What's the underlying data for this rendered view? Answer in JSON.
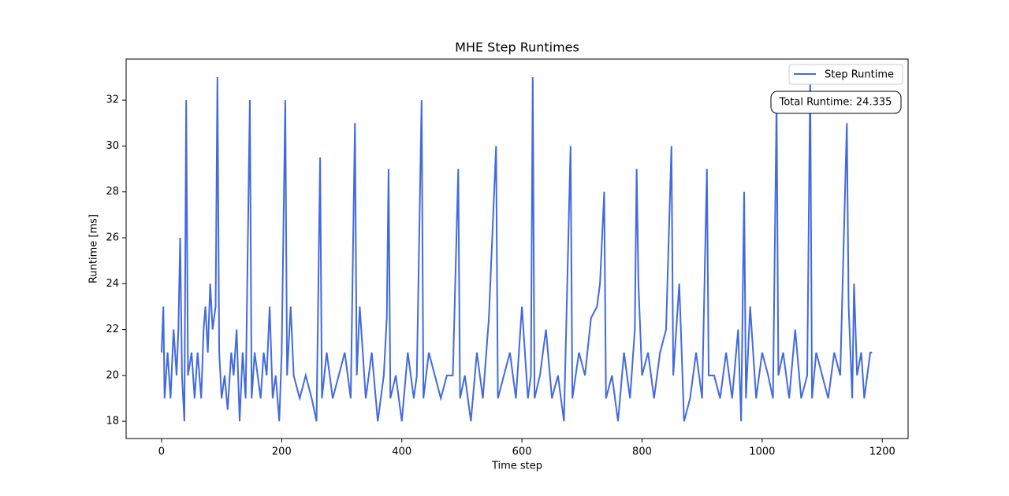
{
  "chart_data": {
    "type": "line",
    "title": "MHE Step Runtimes",
    "x_label": "Time step",
    "y_label": "Runtime [ms]",
    "annotation": "Total Runtime: 24.335",
    "legend": "upper right",
    "x": [
      0,
      3,
      5,
      10,
      15,
      20,
      25,
      28,
      31,
      34,
      38,
      41,
      44,
      50,
      55,
      60,
      66,
      70,
      73,
      77,
      81,
      85,
      90,
      93,
      96,
      100,
      105,
      110,
      116,
      120,
      125,
      130,
      135,
      140,
      147,
      150,
      155,
      160,
      165,
      170,
      175,
      180,
      185,
      190,
      196,
      200,
      206,
      209,
      215,
      220,
      230,
      240,
      250,
      258,
      264,
      267,
      275,
      285,
      295,
      305,
      315,
      322,
      325,
      330,
      340,
      350,
      360,
      370,
      375,
      378,
      381,
      390,
      400,
      410,
      420,
      425,
      433,
      436,
      445,
      455,
      465,
      475,
      485,
      494,
      497,
      505,
      515,
      525,
      535,
      545,
      557,
      560,
      570,
      580,
      590,
      600,
      610,
      615,
      618,
      621,
      630,
      640,
      650,
      660,
      670,
      681,
      684,
      695,
      705,
      715,
      725,
      730,
      737,
      740,
      750,
      760,
      770,
      780,
      788,
      791,
      794,
      800,
      810,
      820,
      830,
      840,
      849,
      852,
      862,
      870,
      880,
      890,
      900,
      908,
      911,
      920,
      930,
      940,
      950,
      960,
      965,
      970,
      973,
      980,
      990,
      1000,
      1010,
      1018,
      1024,
      1027,
      1035,
      1045,
      1055,
      1065,
      1075,
      1080,
      1083,
      1090,
      1100,
      1110,
      1120,
      1130,
      1141,
      1144,
      1150,
      1153,
      1158,
      1165,
      1170,
      1175,
      1180,
      1183
    ],
    "series": [
      {
        "name": "Step Runtime",
        "color": "#4169e1",
        "values": [
          21,
          23,
          19,
          21,
          19,
          22,
          20,
          22,
          26,
          20,
          18,
          32,
          20,
          21,
          19,
          21,
          19,
          22,
          23,
          21,
          24,
          22,
          23,
          33,
          21,
          19,
          20,
          18.5,
          21,
          20,
          22,
          18,
          21,
          19,
          32,
          19,
          21,
          20,
          19,
          21,
          20,
          23,
          19,
          20,
          18,
          21,
          32,
          20,
          23,
          20,
          19,
          20,
          19,
          18,
          29.5,
          19,
          21,
          19,
          20,
          21,
          19,
          31,
          20,
          23,
          19,
          21,
          18,
          20,
          22.5,
          29,
          19,
          20,
          18,
          21,
          19,
          20,
          32,
          19,
          21,
          20,
          19,
          20,
          20,
          29,
          19,
          20,
          18,
          21,
          19,
          22.5,
          30,
          19,
          20,
          21,
          19,
          23,
          19,
          20,
          33,
          19,
          20,
          22,
          19,
          20,
          18,
          30,
          19,
          21,
          20,
          22.5,
          23,
          24,
          28,
          19,
          20,
          18,
          21,
          19,
          22,
          29,
          24,
          20,
          21,
          19,
          21,
          22,
          30,
          20,
          24,
          18,
          19,
          21,
          19,
          29,
          20,
          20,
          19,
          21,
          19,
          22,
          18,
          28,
          19,
          23,
          19,
          21,
          20,
          19,
          32,
          20,
          21,
          19,
          22,
          19,
          20,
          33,
          19,
          21,
          20,
          19,
          21,
          20,
          31,
          23,
          19,
          24,
          20,
          21,
          19,
          20,
          21,
          21
        ]
      }
    ],
    "xlim": [
      -59,
      1243
    ],
    "ylim": [
      17.25,
      33.79
    ],
    "xticks": [
      0,
      200,
      400,
      600,
      800,
      1000,
      1200
    ],
    "yticks": [
      18,
      20,
      22,
      24,
      26,
      28,
      30,
      32
    ]
  }
}
